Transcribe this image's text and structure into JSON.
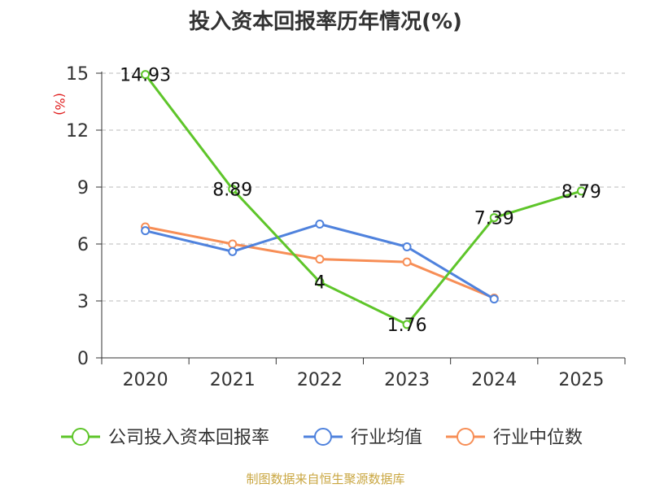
{
  "source_note": "制图数据来自恒生聚源数据库",
  "colors": {
    "company": "#5ec52a",
    "industry_avg": "#4f82dd",
    "industry_median": "#f78e56",
    "grid": "#bbbbbb",
    "axis": "#333333",
    "ylabel": "#e02020",
    "source": "#c9a640"
  },
  "chart_data": {
    "type": "line",
    "title": "投入资本回报率历年情况(%)",
    "xlabel": "",
    "ylabel": "(%)",
    "categories": [
      "2020",
      "2021",
      "2022",
      "2023",
      "2024",
      "2025"
    ],
    "ylim": [
      0,
      15
    ],
    "yticks": [
      0,
      3,
      6,
      9,
      12,
      15
    ],
    "grid": true,
    "legend_position": "bottom",
    "series": [
      {
        "name": "公司投入资本回报率",
        "color_key": "company",
        "values": [
          14.93,
          8.89,
          4,
          1.76,
          7.39,
          8.79
        ],
        "data_labels": [
          "14.93",
          "8.89",
          "4",
          "1.76",
          "7.39",
          "8.79"
        ]
      },
      {
        "name": "行业均值",
        "color_key": "industry_avg",
        "values": [
          6.7,
          5.6,
          7.05,
          5.85,
          3.1,
          null
        ],
        "data_labels": null
      },
      {
        "name": "行业中位数",
        "color_key": "industry_median",
        "values": [
          6.9,
          6.0,
          5.2,
          5.05,
          3.15,
          null
        ],
        "data_labels": null
      }
    ]
  }
}
